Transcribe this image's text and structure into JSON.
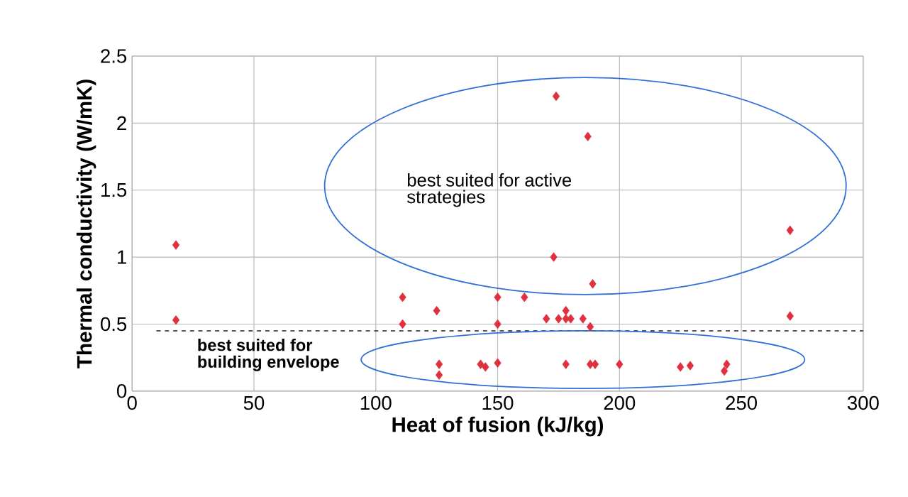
{
  "chart_data": {
    "type": "scatter",
    "xlabel": "Heat of fusion (kJ/kg)",
    "ylabel": "Thermal conductivity (W/mK)",
    "x": [
      18,
      18,
      111,
      111,
      125,
      126,
      126,
      143,
      145,
      150,
      150,
      150,
      161,
      170,
      173,
      174,
      175,
      178,
      178,
      180,
      178,
      185,
      187,
      188,
      189,
      188,
      190,
      200,
      225,
      229,
      243,
      244,
      270,
      270
    ],
    "values": [
      1.09,
      0.53,
      0.7,
      0.5,
      0.6,
      0.2,
      0.12,
      0.2,
      0.18,
      0.7,
      0.5,
      0.21,
      0.7,
      0.54,
      1.0,
      2.2,
      0.54,
      0.6,
      0.54,
      0.54,
      0.2,
      0.54,
      1.9,
      0.48,
      0.8,
      0.2,
      0.2,
      0.2,
      0.18,
      0.19,
      0.15,
      0.2,
      1.2,
      0.56
    ],
    "color": "#e0303f",
    "marker": "diamond",
    "grid": true,
    "xlim": [
      0,
      300
    ],
    "xticks": [
      0,
      50,
      100,
      150,
      200,
      250,
      300
    ],
    "ylim": [
      0,
      2.5
    ],
    "yticks": [
      0,
      0.5,
      1,
      1.5,
      2,
      2.5
    ],
    "ref_lines": [
      {
        "axis": "y",
        "value": 0.45,
        "color": "#222222",
        "line_style": "dashed"
      }
    ],
    "annotations": [
      "best suited for active strategies",
      "best suited for building envelope"
    ]
  }
}
